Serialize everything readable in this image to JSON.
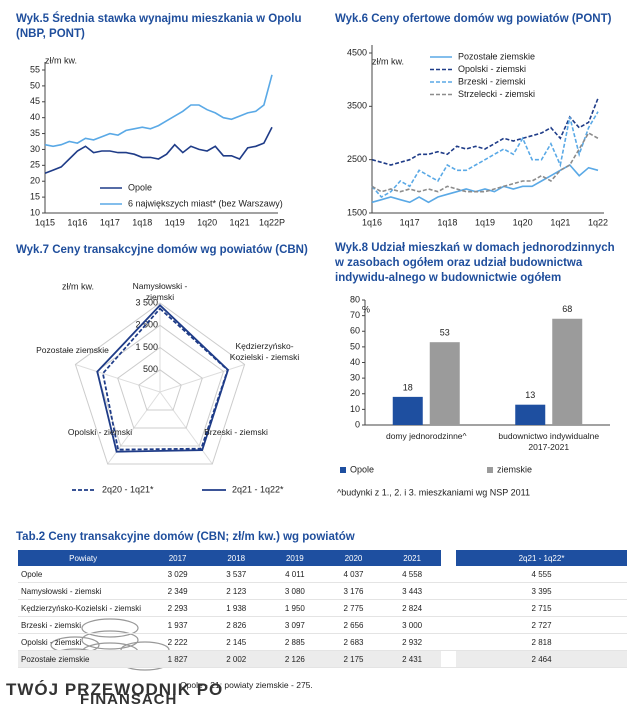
{
  "chart_data": [
    {
      "type": "line",
      "title": "Wyk.5 Średnia stawka wynajmu mieszkania w Opolu (NBP, PONT)",
      "ylabel": "zł/m kw.",
      "categories": [
        "1q15",
        null,
        null,
        null,
        "1q16",
        null,
        null,
        null,
        "1q17",
        null,
        null,
        null,
        "1q18",
        null,
        null,
        null,
        "1q19",
        null,
        null,
        null,
        "1q20",
        null,
        null,
        null,
        "1q21",
        null,
        null,
        null,
        "1q22P"
      ],
      "series": [
        {
          "name": "Opole",
          "color": "#1f3c88",
          "dash": false,
          "values": [
            22.5,
            23.5,
            24.5,
            27,
            29.5,
            31,
            29,
            29.5,
            29.5,
            29,
            29,
            28.5,
            27.5,
            27.5,
            27,
            28.5,
            31.5,
            29,
            31,
            30,
            29.5,
            31,
            28,
            28,
            27,
            30.5,
            31,
            32,
            37
          ]
        },
        {
          "name": "6 największych miast* (bez Warszawy)",
          "color": "#5aa9e6",
          "dash": false,
          "values": [
            31.5,
            31,
            31.5,
            32.5,
            32,
            33.5,
            33,
            34,
            35,
            34.5,
            36,
            36.5,
            37,
            36.5,
            37.5,
            39,
            40.5,
            42,
            44,
            44,
            42.5,
            41.5,
            40,
            39.5,
            40.5,
            41.5,
            42,
            44,
            53.5
          ]
        }
      ],
      "ylim": [
        10,
        55
      ],
      "yticks": [
        10,
        15,
        20,
        25,
        30,
        35,
        40,
        45,
        50,
        55
      ],
      "legend": "bottom"
    },
    {
      "type": "line",
      "title": "Wyk.6 Ceny ofertowe domów wg powiatów (PONT)",
      "ylabel": "zł/m kw.",
      "categories": [
        "1q16",
        null,
        null,
        null,
        "1q17",
        null,
        null,
        null,
        "1q18",
        null,
        null,
        null,
        "1q19",
        null,
        null,
        null,
        "1q20",
        null,
        null,
        null,
        "1q21",
        null,
        null,
        null,
        "1q22"
      ],
      "series": [
        {
          "name": "Pozostałe ziemskie",
          "color": "#5aa9e6",
          "dash": false,
          "values": [
            1700,
            1750,
            1800,
            1750,
            1700,
            1800,
            1700,
            1800,
            1850,
            1900,
            1950,
            1900,
            1950,
            1900,
            2000,
            1950,
            2000,
            2000,
            2100,
            2200,
            2300,
            2400,
            2200,
            2350,
            2300
          ]
        },
        {
          "name": "Opolski - ziemski",
          "color": "#1f3c88",
          "dash": true,
          "values": [
            2500,
            2450,
            2400,
            2450,
            2500,
            2600,
            2600,
            2650,
            2600,
            2750,
            2700,
            2750,
            2700,
            2800,
            2900,
            2850,
            2900,
            2950,
            3000,
            3100,
            2900,
            3300,
            3100,
            3200,
            3650
          ]
        },
        {
          "name": "Brzeski - ziemski",
          "color": "#5aa9e6",
          "dash": true,
          "values": [
            2000,
            1800,
            1900,
            2100,
            2000,
            2300,
            2200,
            2100,
            2400,
            2300,
            2300,
            2400,
            2500,
            2600,
            2700,
            2600,
            2900,
            2500,
            2500,
            2800,
            2400,
            3300,
            2600,
            3100,
            3400
          ]
        },
        {
          "name": "Strzelecki - ziemski",
          "color": "#8c8c8c",
          "dash": true,
          "values": [
            2000,
            1900,
            1950,
            1900,
            1950,
            1900,
            1950,
            1900,
            2000,
            1950,
            1900,
            1900,
            1900,
            1950,
            2000,
            2050,
            2100,
            2100,
            2200,
            2100,
            2300,
            2400,
            2700,
            3000,
            2900
          ]
        }
      ],
      "ylim": [
        1500,
        4500
      ],
      "yticks": [
        1500,
        2500,
        3500,
        4500
      ],
      "legend": "top"
    },
    {
      "type": "radar",
      "title": "Wyk.7 Ceny transakcyjne domów wg powiatów (CBN)",
      "ylabel": "zł/m kw.",
      "categories": [
        "Namysłowski - ziemski",
        "Kędzierzyńsko-Kozielski - ziemski",
        "Brzeski - ziemski",
        "Opolski - ziemski",
        "Pozostałe ziemskie"
      ],
      "series": [
        {
          "name": "2q20 - 1q21*",
          "color": "#1f3c88",
          "dash": true,
          "values": [
            3250,
            2700,
            2650,
            2700,
            2200
          ]
        },
        {
          "name": "2q21 - 1q22*",
          "color": "#1f3c88",
          "dash": false,
          "values": [
            3395,
            2715,
            2727,
            2818,
            2464
          ]
        }
      ],
      "rlim": [
        -500,
        3500
      ],
      "rticks": [
        {
          "value": 500,
          "label": "500"
        },
        {
          "value": 1500,
          "label": "1 500"
        },
        {
          "value": 2500,
          "label": "2 500"
        },
        {
          "value": 3500,
          "label": "3 500"
        }
      ],
      "legend": "bottom"
    },
    {
      "type": "bar",
      "title": "Wyk.8 Udział mieszkań w domach jednorodzinnych w zasobach ogółem oraz udział budownictwa indywidu-alnego w budownictwie ogółem",
      "ylabel": "%",
      "categories": [
        "domy jednorodzinne^",
        "budownictwo indywidualne 2017-2021"
      ],
      "series": [
        {
          "name": "Opole",
          "color": "#1e4fa0",
          "values": [
            18,
            13
          ]
        },
        {
          "name": "ziemskie",
          "color": "#9b9b9b",
          "values": [
            53,
            68
          ]
        }
      ],
      "ylim": [
        0,
        80
      ],
      "yticks": [
        0,
        10,
        20,
        30,
        40,
        50,
        60,
        70,
        80
      ],
      "legend": "bottom",
      "note": "^budynki z 1., 2. i 3. mieszkaniami wg NSP 2011"
    }
  ],
  "table": {
    "title": "Tab.2 Ceny transakcyjne domów (CBN; zł/m kw.) wg powiatów",
    "columns": [
      "Powiaty",
      "2017",
      "2018",
      "2019",
      "2020",
      "2021",
      "2q21 - 1q22*"
    ],
    "rows": [
      {
        "label": "Opole",
        "cells": [
          "3 029",
          "3 537",
          "4 011",
          "4 037",
          "4 558",
          "4 555"
        ]
      },
      {
        "label": "Namysłowski - ziemski",
        "cells": [
          "2 349",
          "2 123",
          "3 080",
          "3 176",
          "3 443",
          "3 395"
        ]
      },
      {
        "label": "Kędzierzyńsko-Kozielski - ziemski",
        "cells": [
          "2 293",
          "1 938",
          "1 950",
          "2 775",
          "2 824",
          "2 715"
        ]
      },
      {
        "label": "Brzeski - ziemski",
        "cells": [
          "1 937",
          "2 826",
          "3 097",
          "2 656",
          "3 000",
          "2 727"
        ]
      },
      {
        "label": "Opolski - ziemski",
        "cells": [
          "2 222",
          "2 145",
          "2 885",
          "2 683",
          "2 932",
          "2 818"
        ]
      },
      {
        "label": "Pozostałe ziemskie",
        "cells": [
          "1 827",
          "2 002",
          "2 126",
          "2 175",
          "2 431",
          "2 464"
        ]
      }
    ],
    "footnote": "Opole - 21; powiaty ziemskie - 275."
  },
  "watermark": [
    "TWÓJ PRZEWODNIK PO",
    "FINANSACH"
  ]
}
